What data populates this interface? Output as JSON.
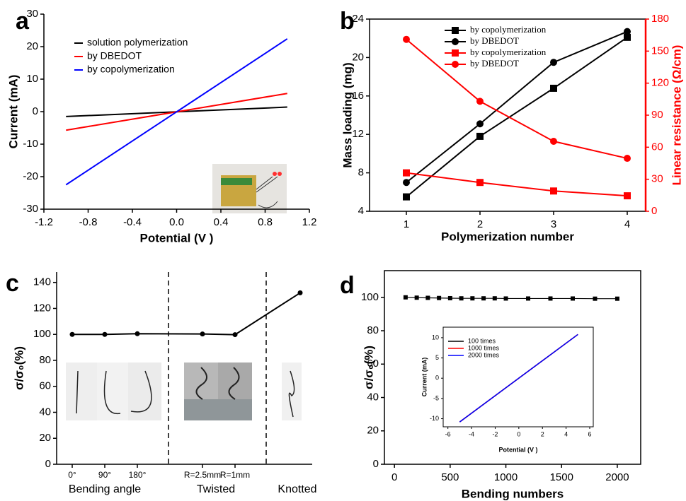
{
  "chart_data": [
    {
      "type": "line",
      "panel_label": "a",
      "x_label": "Potential (V )",
      "y_label": "Current (mA)",
      "x": [
        -1,
        1
      ],
      "series": [
        {
          "name": "solution polymerization",
          "color": "#000000",
          "values": [
            -1.5,
            1.4
          ]
        },
        {
          "name": "by DBEDOT",
          "color": "#ff0000",
          "values": [
            -5.7,
            5.6
          ]
        },
        {
          "name": "by copolymerization",
          "color": "#0000ff",
          "values": [
            -22.5,
            22.4
          ]
        }
      ],
      "xlim": [
        -1.2,
        1.2
      ],
      "xticks": [
        -1.2,
        -0.8,
        -0.4,
        {
          "value": 0,
          "label": "0.0"
        },
        0.4,
        0.8,
        1.2
      ],
      "ylim": [
        -30,
        30
      ],
      "yticks": [
        -30,
        -20,
        -10,
        0,
        10,
        20,
        30
      ],
      "legend": "upper left"
    },
    {
      "type": "line",
      "panel_label": "b",
      "x_label": "Polymerization number",
      "y_label": "Mass loading (mg)",
      "y2_label": "Linear resistance (Ω/cm)",
      "y2_color": "#ff0000",
      "x": [
        1,
        2,
        3,
        4
      ],
      "series": [
        {
          "name": "by copolymerization",
          "color": "#000000",
          "marker": "square",
          "values": [
            5.5,
            11.8,
            16.8,
            22.1
          ]
        },
        {
          "name": "by DBEDOT",
          "color": "#000000",
          "marker": "circle",
          "values": [
            7,
            13.1,
            19.5,
            22.7
          ]
        },
        {
          "name": "by copolymerization",
          "color": "#ff0000",
          "marker": "square",
          "axis": "y2",
          "values": [
            36,
            27,
            19,
            14.5
          ]
        },
        {
          "name": "by DBEDOT",
          "color": "#ff0000",
          "marker": "circle",
          "axis": "y2",
          "values": [
            161,
            103,
            65.5,
            49.6
          ]
        }
      ],
      "xlim": [
        0.5,
        4.25
      ],
      "xticks": [
        1,
        2,
        3,
        4
      ],
      "ylim": [
        4,
        24
      ],
      "yticks": [
        4,
        8,
        12,
        16,
        20,
        24
      ],
      "y2lim": [
        0,
        180
      ],
      "y2ticks": [
        0,
        30,
        60,
        90,
        120,
        150,
        180
      ],
      "legend": "upper left"
    },
    {
      "type": "line",
      "panel_label": "c",
      "y_label": "σ/σ₀(%)",
      "categories": [
        "0°",
        "90°",
        "180°",
        "R=2.5mm",
        "R=1mm",
        null
      ],
      "group_labels": [
        "Bending angle",
        "Twisted",
        "Knotted"
      ],
      "series": [
        {
          "color": "#000000",
          "marker": "circle",
          "values": [
            100,
            100,
            100.5,
            100.3,
            99.8,
            132
          ]
        }
      ],
      "ylim": [
        0,
        148
      ],
      "yticks": [
        0,
        20,
        40,
        60,
        80,
        100,
        120,
        140
      ]
    },
    {
      "type": "line",
      "panel_label": "d",
      "x_label": "Bending numbers",
      "y_label": "σ/σ₀(%)",
      "x": [
        100,
        200,
        300,
        400,
        500,
        600,
        700,
        800,
        900,
        1000,
        1200,
        1400,
        1600,
        1800,
        2000
      ],
      "series": [
        {
          "color": "#000000",
          "marker": "square",
          "values": [
            100,
            99.8,
            99.7,
            99.6,
            99.5,
            99.4,
            99.4,
            99.4,
            99.4,
            99.3,
            99.3,
            99.3,
            99.3,
            99.2,
            99.2
          ]
        }
      ],
      "xlim": [
        -90,
        2210
      ],
      "xticks": [
        0,
        500,
        1000,
        1500,
        2000
      ],
      "ylim": [
        0,
        116
      ],
      "yticks": [
        0,
        20,
        40,
        60,
        80,
        100
      ]
    },
    {
      "type": "line",
      "x_label": "Potential (V )",
      "y_label": "Current (mA)",
      "x": [
        -5,
        5
      ],
      "series": [
        {
          "name": "100 times",
          "color": "#000000",
          "values": [
            -10.8,
            10.8
          ]
        },
        {
          "name": "1000 times",
          "color": "#ff0000",
          "values": [
            -10.8,
            10.8
          ]
        },
        {
          "name": "2000 times",
          "color": "#0000ff",
          "values": [
            -10.8,
            10.8
          ]
        }
      ],
      "xlim": [
        -6.4,
        6.3
      ],
      "xticks": [
        -6,
        -4,
        -2,
        0,
        2,
        4,
        6
      ],
      "ylim": [
        -12,
        12.6
      ],
      "yticks": [
        -10,
        -5,
        0,
        5,
        10
      ],
      "legend": "upper left"
    }
  ]
}
